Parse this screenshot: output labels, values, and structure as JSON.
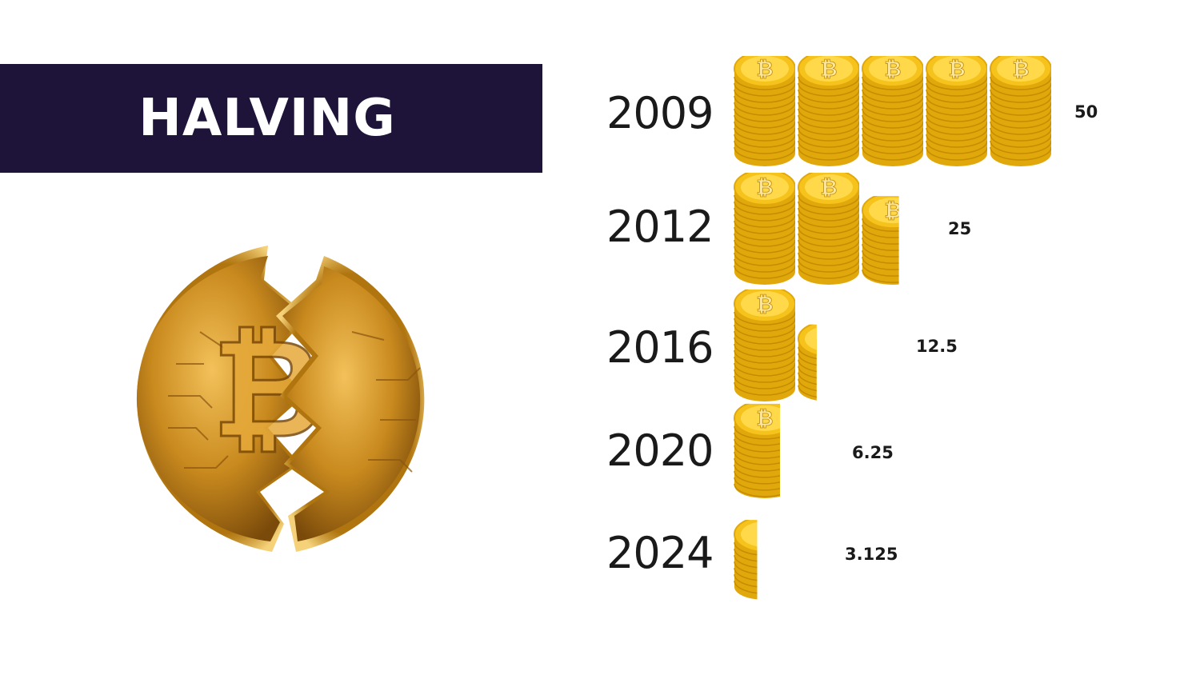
{
  "header": {
    "title": "HALVING"
  },
  "colors": {
    "banner": "#1e1338",
    "coin_face": "#f6c21c",
    "coin_edge": "#e1a80c",
    "coin_light": "#ffd94a",
    "coin_symbol": "#fde7a0",
    "broken_coin": "#c98a1e"
  },
  "illustration": {
    "icon": "broken-bitcoin-icon"
  },
  "chart_data": {
    "type": "bar",
    "categories": [
      "2009",
      "2012",
      "2016",
      "2020",
      "2024"
    ],
    "values": [
      50,
      25,
      12.5,
      6.25,
      3.125
    ],
    "value_labels": [
      "50",
      "25",
      "12.5",
      "6.25",
      "3.125"
    ],
    "unit_per_stack": 10,
    "mark_icon": "bitcoin-coin-stack-icon"
  }
}
